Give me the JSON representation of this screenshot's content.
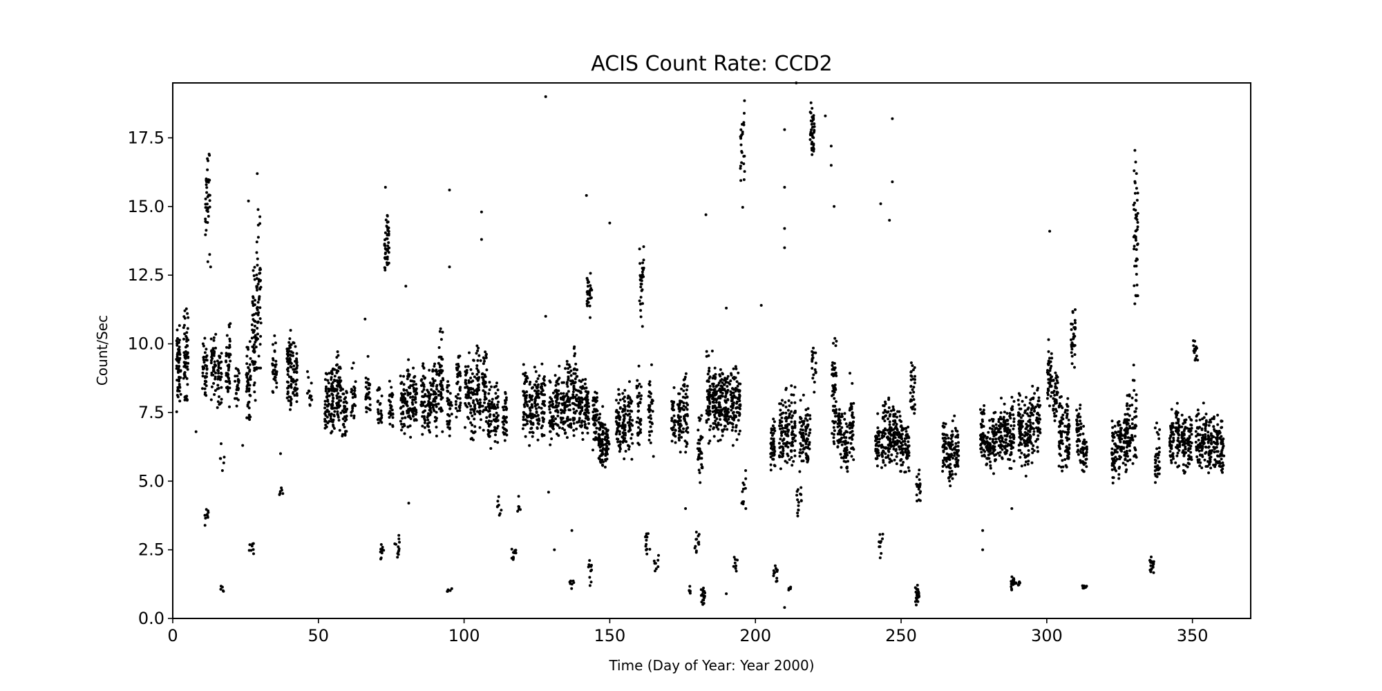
{
  "chart_data": {
    "type": "scatter",
    "title": "ACIS Count Rate: CCD2",
    "xlabel": "Time (Day of Year: Year 2000)",
    "ylabel": "Count/Sec",
    "xlim": [
      0,
      370
    ],
    "ylim": [
      0,
      19.5
    ],
    "xticks": [
      0,
      50,
      100,
      150,
      200,
      250,
      300,
      350
    ],
    "yticks": [
      0.0,
      2.5,
      5.0,
      7.5,
      10.0,
      12.5,
      15.0,
      17.5
    ],
    "xtick_labels": [
      "0",
      "50",
      "100",
      "150",
      "200",
      "250",
      "300",
      "350"
    ],
    "ytick_labels": [
      "0.0",
      "2.5",
      "5.0",
      "7.5",
      "10.0",
      "12.5",
      "15.0",
      "17.5"
    ],
    "grid": false,
    "marker_color": "#000000",
    "series": [
      {
        "clusters": [
          [
            2,
            7.0,
            11.2,
            60
          ],
          [
            4.5,
            7.2,
            12.0,
            60
          ],
          [
            11,
            7.5,
            10.5,
            40
          ],
          [
            11.5,
            3.3,
            4.2,
            10
          ],
          [
            12,
            12.5,
            18.6,
            40
          ],
          [
            14,
            7.4,
            11.0,
            40
          ],
          [
            16,
            7.0,
            10.5,
            35
          ],
          [
            17,
            5.3,
            6.5,
            6
          ],
          [
            17,
            0.9,
            1.3,
            5
          ],
          [
            19,
            7.3,
            11.5,
            45
          ],
          [
            22,
            7.3,
            9.5,
            25
          ],
          [
            26,
            6.8,
            10.5,
            50
          ],
          [
            27,
            2.1,
            3.0,
            8
          ],
          [
            28,
            7.0,
            13.5,
            55
          ],
          [
            29.5,
            8.0,
            16.0,
            50
          ],
          [
            35,
            7.5,
            10.5,
            30
          ],
          [
            37,
            4.3,
            5.0,
            6
          ],
          [
            40,
            6.8,
            11.0,
            60
          ],
          [
            42,
            6.9,
            10.5,
            40
          ],
          [
            47,
            7.0,
            9.5,
            15
          ],
          [
            53,
            6.0,
            9.5,
            45
          ],
          [
            55,
            6.0,
            10.0,
            55
          ],
          [
            57,
            6.2,
            10.3,
            55
          ],
          [
            59,
            6.0,
            9.0,
            35
          ],
          [
            62,
            6.5,
            9.5,
            25
          ],
          [
            67,
            6.5,
            9.8,
            30
          ],
          [
            71,
            6.5,
            9.0,
            25
          ],
          [
            72,
            1.8,
            3.3,
            10
          ],
          [
            73.5,
            12.3,
            15.0,
            50
          ],
          [
            75,
            6.5,
            9.0,
            30
          ],
          [
            77,
            1.9,
            3.3,
            12
          ],
          [
            79,
            6.0,
            10.0,
            40
          ],
          [
            81,
            6.0,
            10.2,
            40
          ],
          [
            83,
            6.2,
            9.6,
            40
          ],
          [
            86,
            6.0,
            10.0,
            45
          ],
          [
            88,
            6.0,
            9.5,
            40
          ],
          [
            90,
            6.2,
            10.2,
            45
          ],
          [
            92,
            6.5,
            11.0,
            50
          ],
          [
            95,
            6.0,
            9.5,
            35
          ],
          [
            95,
            0.9,
            1.2,
            5
          ],
          [
            98,
            6.5,
            10.5,
            40
          ],
          [
            101,
            6.5,
            10.0,
            40
          ],
          [
            103,
            6.0,
            9.8,
            45
          ],
          [
            105,
            6.0,
            10.5,
            50
          ],
          [
            107,
            6.2,
            10.8,
            45
          ],
          [
            109,
            6.0,
            9.0,
            40
          ],
          [
            111,
            6.0,
            9.0,
            40
          ],
          [
            112,
            3.4,
            4.8,
            8
          ],
          [
            114,
            6.0,
            9.0,
            35
          ],
          [
            117,
            1.8,
            2.9,
            12
          ],
          [
            119,
            3.5,
            4.8,
            6
          ],
          [
            121,
            6.2,
            9.8,
            45
          ],
          [
            123,
            5.8,
            9.2,
            45
          ],
          [
            125,
            6.0,
            9.5,
            50
          ],
          [
            127,
            6.0,
            9.5,
            40
          ],
          [
            130,
            6.0,
            9.0,
            40
          ],
          [
            132,
            6.0,
            9.5,
            45
          ],
          [
            134,
            5.8,
            9.5,
            45
          ],
          [
            136,
            6.2,
            10.0,
            50
          ],
          [
            137,
            1.0,
            1.6,
            8
          ],
          [
            138,
            6.0,
            10.5,
            55
          ],
          [
            140,
            6.0,
            9.5,
            50
          ],
          [
            142,
            6.0,
            9.3,
            50
          ],
          [
            143,
            10.8,
            13.0,
            25
          ],
          [
            143,
            1.0,
            2.8,
            10
          ],
          [
            145,
            5.5,
            9.0,
            50
          ],
          [
            147,
            5.0,
            8.0,
            60
          ],
          [
            149,
            5.0,
            7.5,
            40
          ],
          [
            153,
            5.5,
            9.0,
            45
          ],
          [
            155,
            5.5,
            8.8,
            45
          ],
          [
            157,
            5.2,
            9.0,
            40
          ],
          [
            160,
            5.5,
            9.5,
            40
          ],
          [
            161,
            10.0,
            14.5,
            30
          ],
          [
            163,
            2.0,
            3.7,
            12
          ],
          [
            164,
            5.5,
            9.5,
            35
          ],
          [
            166,
            1.5,
            2.5,
            8
          ],
          [
            172,
            5.5,
            8.8,
            35
          ],
          [
            174,
            5.5,
            9.2,
            40
          ],
          [
            176,
            5.8,
            9.5,
            45
          ],
          [
            178,
            0.8,
            1.3,
            6
          ],
          [
            180,
            2.0,
            3.5,
            12
          ],
          [
            181,
            4.5,
            8.0,
            40
          ],
          [
            182,
            0.3,
            1.3,
            20
          ],
          [
            184,
            6.0,
            10.0,
            55
          ],
          [
            186,
            6.0,
            10.0,
            60
          ],
          [
            188,
            6.2,
            9.5,
            55
          ],
          [
            190,
            6.0,
            9.5,
            55
          ],
          [
            192,
            6.2,
            9.5,
            50
          ],
          [
            193,
            1.5,
            2.5,
            8
          ],
          [
            194,
            6.0,
            9.8,
            50
          ],
          [
            195.5,
            14.8,
            19.3,
            25
          ],
          [
            196,
            3.6,
            5.5,
            12
          ],
          [
            206,
            4.7,
            8.0,
            45
          ],
          [
            207,
            1.2,
            2.1,
            12
          ],
          [
            209,
            4.8,
            8.5,
            45
          ],
          [
            211,
            4.8,
            9.0,
            45
          ],
          [
            212,
            1.0,
            1.2,
            5
          ],
          [
            213,
            5.0,
            8.8,
            45
          ],
          [
            215,
            3.3,
            5.0,
            15
          ],
          [
            216,
            4.8,
            8.5,
            45
          ],
          [
            218,
            5.0,
            8.5,
            45
          ],
          [
            219.5,
            16.2,
            19.2,
            40
          ],
          [
            220,
            8.0,
            10.8,
            20
          ],
          [
            227,
            5.0,
            11.5,
            55
          ],
          [
            229,
            5.0,
            8.5,
            45
          ],
          [
            231,
            4.8,
            8.0,
            45
          ],
          [
            233,
            5.0,
            9.0,
            45
          ],
          [
            242,
            5.2,
            7.5,
            40
          ],
          [
            243,
            2.0,
            3.5,
            10
          ],
          [
            244,
            5.0,
            8.5,
            45
          ],
          [
            246,
            5.0,
            8.5,
            50
          ],
          [
            248,
            5.0,
            8.8,
            50
          ],
          [
            250,
            5.0,
            8.0,
            45
          ],
          [
            252,
            5.0,
            7.5,
            40
          ],
          [
            254,
            6.5,
            10.5,
            30
          ],
          [
            255.5,
            0.3,
            1.3,
            25
          ],
          [
            256,
            3.9,
            6.0,
            20
          ],
          [
            265,
            4.8,
            7.5,
            45
          ],
          [
            267,
            4.5,
            7.8,
            50
          ],
          [
            269,
            5.0,
            7.5,
            40
          ],
          [
            278,
            5.0,
            8.5,
            45
          ],
          [
            280,
            5.0,
            7.5,
            40
          ],
          [
            282,
            5.0,
            8.0,
            45
          ],
          [
            284,
            5.0,
            8.2,
            45
          ],
          [
            286,
            5.2,
            8.0,
            50
          ],
          [
            288,
            5.0,
            8.5,
            50
          ],
          [
            288.5,
            0.9,
            1.6,
            15
          ],
          [
            290,
            1.1,
            1.5,
            8
          ],
          [
            291,
            5.2,
            8.5,
            50
          ],
          [
            293,
            5.0,
            8.5,
            50
          ],
          [
            295,
            5.2,
            9.0,
            45
          ],
          [
            297,
            5.5,
            9.0,
            40
          ],
          [
            301,
            7.0,
            10.5,
            40
          ],
          [
            303,
            6.5,
            9.5,
            40
          ],
          [
            305,
            5.0,
            8.5,
            45
          ],
          [
            307,
            5.0,
            8.5,
            50
          ],
          [
            309,
            8.5,
            12.0,
            30
          ],
          [
            311,
            5.0,
            8.5,
            45
          ],
          [
            313,
            4.5,
            7.5,
            40
          ],
          [
            313,
            1.0,
            1.3,
            8
          ],
          [
            323,
            4.5,
            8.0,
            45
          ],
          [
            325,
            5.0,
            7.8,
            40
          ],
          [
            327,
            5.0,
            8.0,
            40
          ],
          [
            328,
            5.0,
            8.5,
            40
          ],
          [
            330,
            5.0,
            9.5,
            40
          ],
          [
            330.5,
            10.0,
            18.5,
            50
          ],
          [
            336,
            1.4,
            2.5,
            20
          ],
          [
            338,
            4.0,
            7.8,
            40
          ],
          [
            343,
            5.0,
            8.0,
            40
          ],
          [
            345,
            5.0,
            8.5,
            45
          ],
          [
            347,
            5.0,
            8.0,
            45
          ],
          [
            349,
            5.0,
            7.8,
            45
          ],
          [
            351,
            9.0,
            10.5,
            15
          ],
          [
            352,
            5.0,
            8.0,
            45
          ],
          [
            354,
            5.0,
            8.0,
            45
          ],
          [
            356,
            4.8,
            7.8,
            45
          ],
          [
            358,
            4.8,
            8.0,
            45
          ],
          [
            360,
            4.6,
            7.8,
            45
          ]
        ],
        "outliers": [
          [
            128,
            19.0
          ],
          [
            214,
            19.5
          ],
          [
            224,
            18.3
          ],
          [
            247,
            18.2
          ],
          [
            210,
            17.8
          ],
          [
            226,
            17.2
          ],
          [
            226,
            16.5
          ],
          [
            29,
            16.2
          ],
          [
            26,
            15.2
          ],
          [
            73,
            15.7
          ],
          [
            95,
            15.6
          ],
          [
            210,
            15.7
          ],
          [
            227,
            15.0
          ],
          [
            243,
            15.1
          ],
          [
            247,
            15.9
          ],
          [
            106,
            14.8
          ],
          [
            142,
            15.4
          ],
          [
            183,
            14.7
          ],
          [
            210,
            14.2
          ],
          [
            246,
            14.5
          ],
          [
            301,
            14.1
          ],
          [
            106,
            13.8
          ],
          [
            150,
            14.4
          ],
          [
            210,
            13.5
          ],
          [
            13,
            12.8
          ],
          [
            80,
            12.1
          ],
          [
            95,
            12.8
          ],
          [
            161,
            12.3
          ],
          [
            202,
            11.4
          ],
          [
            190,
            11.3
          ],
          [
            66,
            10.9
          ],
          [
            128,
            11.0
          ],
          [
            37,
            6.0
          ],
          [
            24,
            6.3
          ],
          [
            8,
            6.8
          ],
          [
            81,
            4.2
          ],
          [
            129,
            4.6
          ],
          [
            137,
            3.2
          ],
          [
            131,
            2.5
          ],
          [
            176,
            4.0
          ],
          [
            278,
            2.5
          ],
          [
            278,
            3.2
          ],
          [
            288,
            4.0
          ],
          [
            165,
            5.9
          ],
          [
            210,
            0.4
          ],
          [
            190,
            0.9
          ]
        ]
      }
    ]
  }
}
